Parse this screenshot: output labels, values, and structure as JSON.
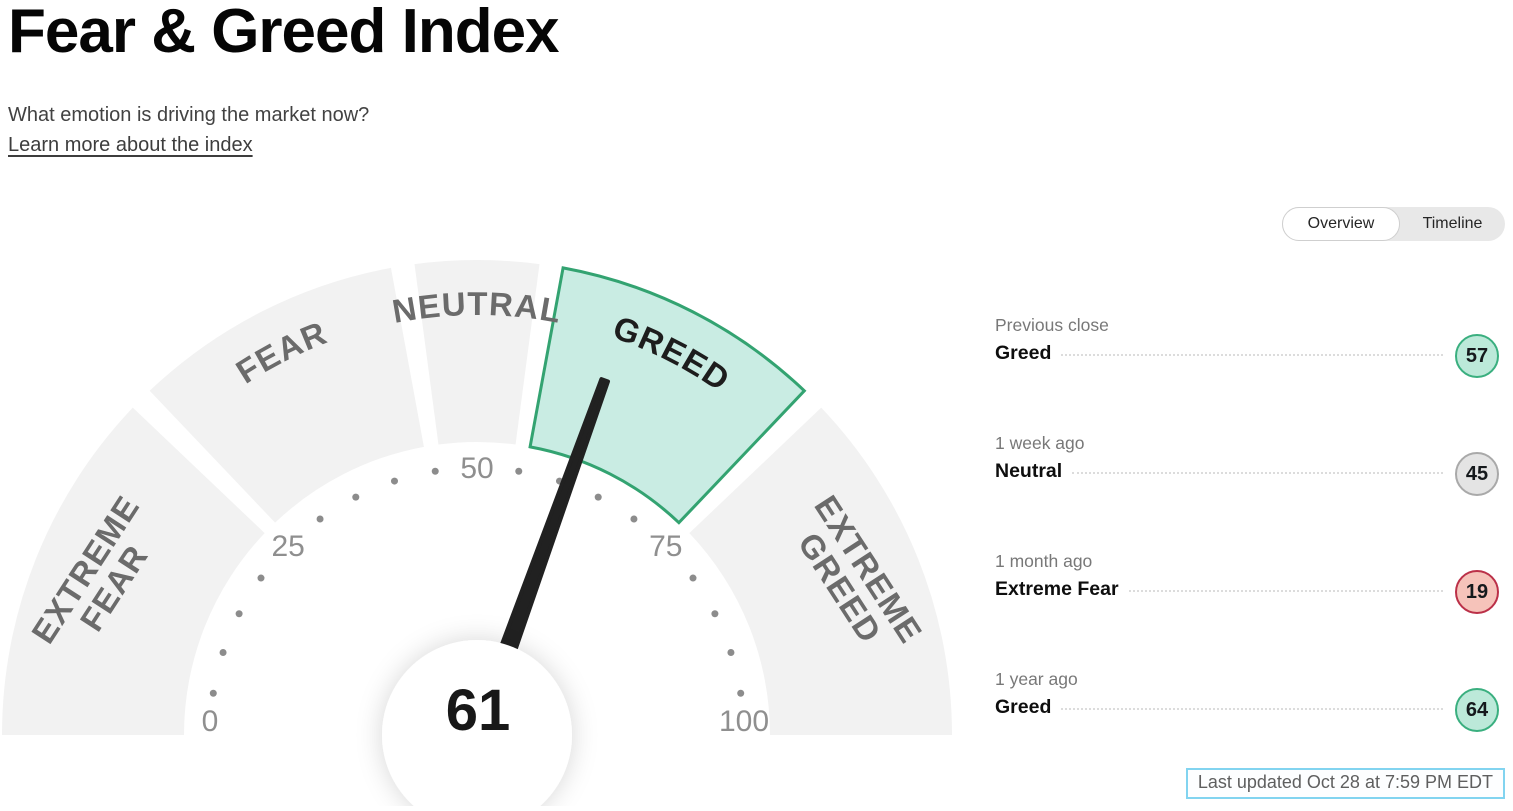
{
  "page": {
    "title": "Fear & Greed Index",
    "subtitle": "What emotion is driving the market now?",
    "learn_more": "Learn more about the index",
    "last_updated": "Last updated Oct 28 at 7:59 PM EDT"
  },
  "tabs": {
    "overview": "Overview",
    "timeline": "Timeline"
  },
  "chart_data": {
    "type": "gauge",
    "title": "Fear & Greed Index",
    "min": 0,
    "max": 100,
    "value": 61,
    "current_sentiment": "Greed",
    "tick_labels": [
      0,
      25,
      50,
      75,
      100
    ],
    "dot_step": 5,
    "segments": [
      {
        "label": "EXTREME FEAR",
        "from": 0,
        "to": 25,
        "active": false
      },
      {
        "label": "FEAR",
        "from": 25,
        "to": 45,
        "active": false
      },
      {
        "label": "NEUTRAL",
        "from": 45,
        "to": 55,
        "active": false
      },
      {
        "label": "GREED",
        "from": 55,
        "to": 75,
        "active": true
      },
      {
        "label": "EXTREME GREED",
        "from": 75,
        "to": 100,
        "active": false
      }
    ],
    "colors": {
      "segment": "#f2f2f2",
      "active_fill": "#c9ece3",
      "active_stroke": "#33a371",
      "needle": "#212121",
      "label": "#6b6b6b",
      "active_label": "#1d1d1d",
      "tick": "#8c8c8c"
    }
  },
  "history": [
    {
      "label": "Previous close",
      "sentiment": "Greed",
      "value": 57,
      "tone": "greed"
    },
    {
      "label": "1 week ago",
      "sentiment": "Neutral",
      "value": 45,
      "tone": "neutral"
    },
    {
      "label": "1 month ago",
      "sentiment": "Extreme Fear",
      "value": 19,
      "tone": "fear"
    },
    {
      "label": "1 year ago",
      "sentiment": "Greed",
      "value": 64,
      "tone": "greed"
    }
  ],
  "badge_colors": {
    "greed": {
      "bg": "#bce9d9",
      "border": "#3aaf7f"
    },
    "neutral": {
      "bg": "#e4e4e4",
      "border": "#a9a9a9"
    },
    "fear": {
      "bg": "#f6c3ba",
      "border": "#bb3048"
    }
  }
}
